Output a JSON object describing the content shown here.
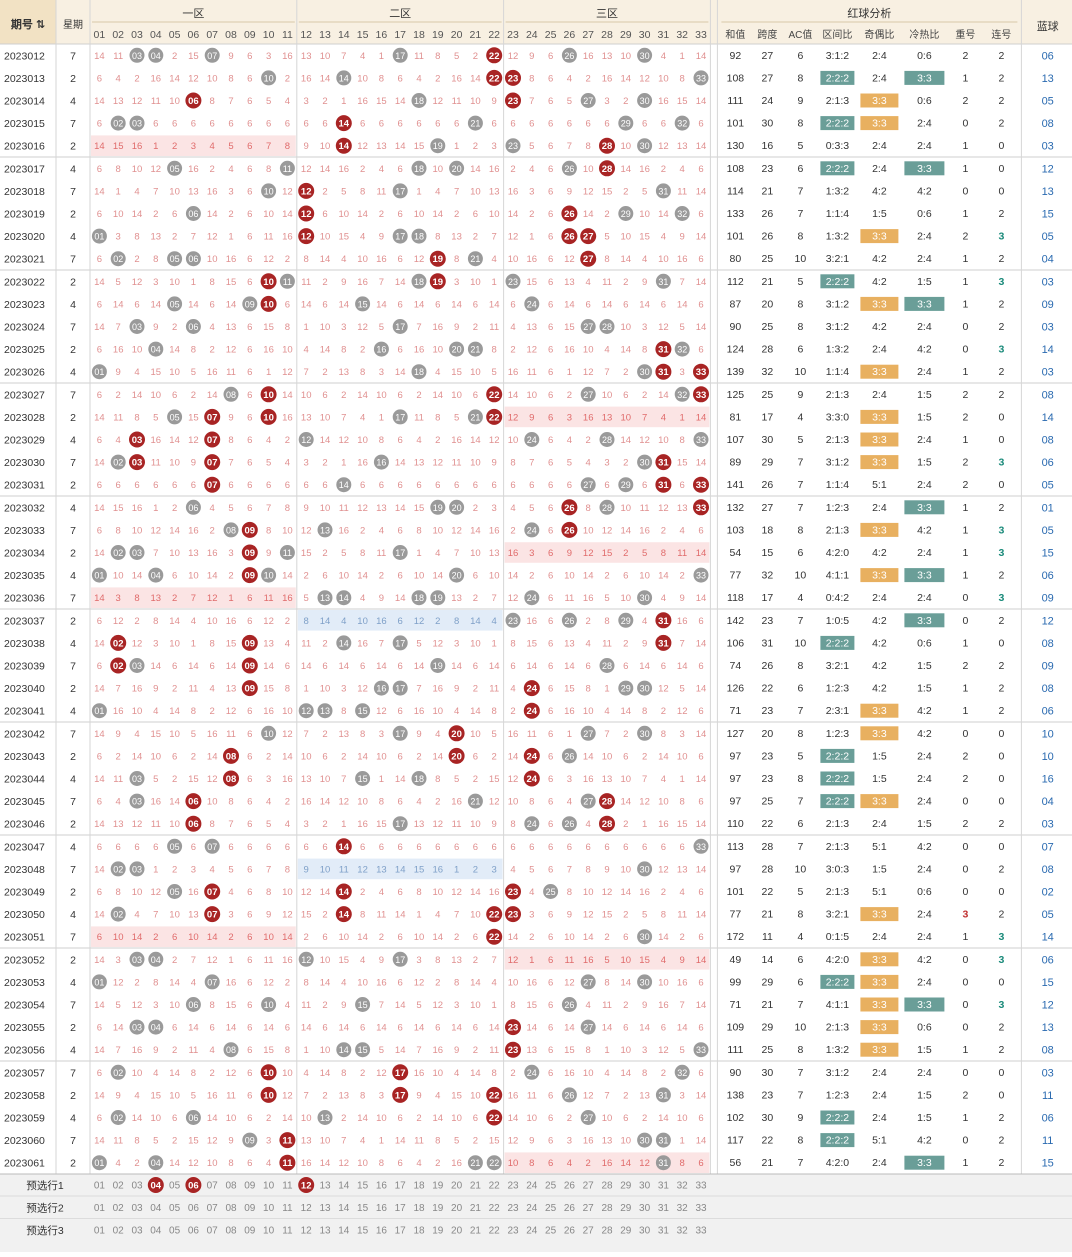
{
  "header": {
    "qihao_label": "期号",
    "week_label": "星期",
    "zone1_label": "一区",
    "zone2_label": "二区",
    "zone3_label": "三区",
    "analysis_label": "红球分析",
    "blue_label": "蓝球",
    "analysis_cols": [
      "和值",
      "跨度",
      "AC值",
      "区间比",
      "奇偶比",
      "冷热比",
      "重号",
      "连号"
    ],
    "numbers": [
      "01",
      "02",
      "03",
      "04",
      "05",
      "06",
      "07",
      "08",
      "09",
      "10",
      "11",
      "12",
      "13",
      "14",
      "15",
      "16",
      "17",
      "18",
      "19",
      "20",
      "21",
      "22",
      "23",
      "24",
      "25",
      "26",
      "27",
      "28",
      "29",
      "30",
      "31",
      "32",
      "33"
    ]
  },
  "colors": {
    "header_bg": "#f8f0e2",
    "red_ball": "#a82424",
    "gray_ball": "#9a9a9a",
    "miss_text": "#e09090",
    "teal": "#6a9e98",
    "orange": "#e8b060",
    "blue_text": "#2a6ab0",
    "pink_band": "#fbe4e4",
    "blue_band": "#e2ecf8"
  },
  "rows": [
    {
      "id": "2023012",
      "week": "7",
      "reds": [
        22
      ],
      "grays": [
        3,
        4,
        7,
        17,
        26,
        30
      ],
      "sum": "92",
      "span": "27",
      "ac": "6",
      "zone": "3:1:2",
      "oe": "2:4",
      "ch": "0:6",
      "rep": "2",
      "con": "2",
      "blue": "06",
      "oeH": 0,
      "chH": 0
    },
    {
      "id": "2023013",
      "week": "2",
      "reds": [
        22,
        23
      ],
      "grays": [
        10,
        14,
        33
      ],
      "sum": "108",
      "span": "27",
      "ac": "8",
      "zone": "2:2:2",
      "oe": "2:4",
      "ch": "3:3",
      "rep": "1",
      "con": "2",
      "blue": "13",
      "oeH": 0,
      "chH": 1,
      "zoneH": 1
    },
    {
      "id": "2023014",
      "week": "4",
      "reds": [
        6,
        23
      ],
      "grays": [
        18,
        27,
        30
      ],
      "sum": "111",
      "span": "24",
      "ac": "9",
      "zone": "2:1:3",
      "oe": "3:3",
      "ch": "0:6",
      "rep": "2",
      "con": "2",
      "blue": "05",
      "oeH": 1,
      "chH": 0
    },
    {
      "id": "2023015",
      "week": "7",
      "reds": [
        14
      ],
      "grays": [
        2,
        3,
        21,
        29,
        32
      ],
      "sum": "101",
      "span": "30",
      "ac": "8",
      "zone": "2:2:2",
      "oe": "3:3",
      "ch": "2:4",
      "rep": "0",
      "con": "2",
      "blue": "08",
      "oeH": 1,
      "zoneH": 1
    },
    {
      "id": "2023016",
      "week": "2",
      "reds": [
        14,
        28
      ],
      "grays": [
        19,
        23,
        30
      ],
      "sum": "130",
      "span": "16",
      "ac": "5",
      "zone": "0:3:3",
      "oe": "2:4",
      "ch": "2:4",
      "rep": "1",
      "con": "0",
      "blue": "03",
      "band1": "pink"
    },
    {
      "id": "2023017",
      "week": "4",
      "reds": [
        28
      ],
      "grays": [
        5,
        11,
        18,
        20,
        26
      ],
      "sum": "108",
      "span": "23",
      "ac": "6",
      "zone": "2:2:2",
      "oe": "2:4",
      "ch": "3:3",
      "rep": "1",
      "con": "0",
      "blue": "12",
      "zoneH": 1,
      "chH": 1
    },
    {
      "id": "2023018",
      "week": "7",
      "reds": [
        12
      ],
      "grays": [
        10,
        17,
        31
      ],
      "sum": "114",
      "span": "21",
      "ac": "7",
      "zone": "1:3:2",
      "oe": "4:2",
      "ch": "4:2",
      "rep": "0",
      "con": "0",
      "blue": "13"
    },
    {
      "id": "2023019",
      "week": "2",
      "reds": [
        12,
        26
      ],
      "grays": [
        6,
        29,
        32
      ],
      "sum": "133",
      "span": "26",
      "ac": "7",
      "zone": "1:1:4",
      "oe": "1:5",
      "ch": "0:6",
      "rep": "1",
      "con": "2",
      "blue": "15"
    },
    {
      "id": "2023020",
      "week": "4",
      "reds": [
        12,
        26,
        27
      ],
      "grays": [
        1,
        17,
        18
      ],
      "sum": "101",
      "span": "26",
      "ac": "8",
      "zone": "1:3:2",
      "oe": "3:3",
      "ch": "2:4",
      "rep": "2",
      "con": "3",
      "blue": "05",
      "oeH": 1,
      "conH": 1
    },
    {
      "id": "2023021",
      "week": "7",
      "reds": [
        19,
        27
      ],
      "grays": [
        2,
        5,
        6,
        21
      ],
      "sum": "80",
      "span": "25",
      "ac": "10",
      "zone": "3:2:1",
      "oe": "4:2",
      "ch": "2:4",
      "rep": "1",
      "con": "2",
      "blue": "04"
    },
    {
      "id": "2023022",
      "week": "2",
      "reds": [
        10,
        19
      ],
      "grays": [
        11,
        18,
        23,
        31
      ],
      "sum": "112",
      "span": "21",
      "ac": "5",
      "zone": "2:2:2",
      "oe": "4:2",
      "ch": "1:5",
      "rep": "1",
      "con": "3",
      "blue": "03",
      "zoneH": 1,
      "conH": 1
    },
    {
      "id": "2023023",
      "week": "4",
      "reds": [
        10
      ],
      "grays": [
        5,
        9,
        15,
        24
      ],
      "sum": "87",
      "span": "20",
      "ac": "8",
      "zone": "3:1:2",
      "oe": "3:3",
      "ch": "3:3",
      "rep": "1",
      "con": "2",
      "blue": "09",
      "oeH": 1,
      "chH": 1
    },
    {
      "id": "2023024",
      "week": "7",
      "reds": [],
      "grays": [
        3,
        6,
        17,
        27,
        28
      ],
      "sum": "90",
      "span": "25",
      "ac": "8",
      "zone": "3:1:2",
      "oe": "4:2",
      "ch": "2:4",
      "rep": "0",
      "con": "2",
      "blue": "03"
    },
    {
      "id": "2023025",
      "week": "2",
      "reds": [
        31
      ],
      "grays": [
        4,
        16,
        20,
        21,
        32
      ],
      "sum": "124",
      "span": "28",
      "ac": "6",
      "zone": "1:3:2",
      "oe": "2:4",
      "ch": "4:2",
      "rep": "0",
      "con": "3",
      "blue": "14",
      "conH": 1
    },
    {
      "id": "2023026",
      "week": "4",
      "reds": [
        31,
        33
      ],
      "grays": [
        1,
        18,
        30
      ],
      "sum": "139",
      "span": "32",
      "ac": "10",
      "zone": "1:1:4",
      "oe": "3:3",
      "ch": "2:4",
      "rep": "1",
      "con": "2",
      "blue": "03",
      "oeH": 1
    },
    {
      "id": "2023027",
      "week": "7",
      "reds": [
        10,
        22,
        33
      ],
      "grays": [
        8,
        27,
        32
      ],
      "sum": "125",
      "span": "25",
      "ac": "9",
      "zone": "2:1:3",
      "oe": "2:4",
      "ch": "1:5",
      "rep": "2",
      "con": "2",
      "blue": "08"
    },
    {
      "id": "2023028",
      "week": "2",
      "reds": [
        7,
        10,
        22
      ],
      "grays": [
        5,
        17,
        21
      ],
      "sum": "81",
      "span": "17",
      "ac": "4",
      "zone": "3:3:0",
      "oe": "3:3",
      "ch": "1:5",
      "rep": "2",
      "con": "0",
      "blue": "14",
      "oeH": 1,
      "band3": "pink"
    },
    {
      "id": "2023029",
      "week": "4",
      "reds": [
        3,
        7
      ],
      "grays": [
        12,
        24,
        28,
        33
      ],
      "sum": "107",
      "span": "30",
      "ac": "5",
      "zone": "2:1:3",
      "oe": "3:3",
      "ch": "2:4",
      "rep": "1",
      "con": "0",
      "blue": "08",
      "oeH": 1
    },
    {
      "id": "2023030",
      "week": "7",
      "reds": [
        3,
        7,
        31
      ],
      "grays": [
        2,
        16,
        30
      ],
      "sum": "89",
      "span": "29",
      "ac": "7",
      "zone": "3:1:2",
      "oe": "3:3",
      "ch": "1:5",
      "rep": "2",
      "con": "3",
      "blue": "06",
      "oeH": 1,
      "conH": 1
    },
    {
      "id": "2023031",
      "week": "2",
      "reds": [
        7,
        31,
        33
      ],
      "grays": [
        14,
        27,
        29
      ],
      "sum": "141",
      "span": "26",
      "ac": "7",
      "zone": "1:1:4",
      "oe": "5:1",
      "ch": "2:4",
      "rep": "2",
      "con": "0",
      "blue": "05"
    },
    {
      "id": "2023032",
      "week": "4",
      "reds": [
        26,
        33
      ],
      "grays": [
        6,
        19,
        20,
        28
      ],
      "sum": "132",
      "span": "27",
      "ac": "7",
      "zone": "1:2:3",
      "oe": "2:4",
      "ch": "3:3",
      "rep": "1",
      "con": "2",
      "blue": "01",
      "chH": 1
    },
    {
      "id": "2023033",
      "week": "7",
      "reds": [
        9,
        26
      ],
      "grays": [
        8,
        13,
        24
      ],
      "sum": "103",
      "span": "18",
      "ac": "8",
      "zone": "2:1:3",
      "oe": "3:3",
      "ch": "4:2",
      "rep": "1",
      "con": "3",
      "blue": "05",
      "oeH": 1,
      "conH": 1
    },
    {
      "id": "2023034",
      "week": "2",
      "reds": [
        9
      ],
      "grays": [
        2,
        3,
        11,
        17
      ],
      "sum": "54",
      "span": "15",
      "ac": "6",
      "zone": "4:2:0",
      "oe": "4:2",
      "ch": "2:4",
      "rep": "1",
      "con": "3",
      "blue": "15",
      "conH": 1,
      "band3": "pink"
    },
    {
      "id": "2023035",
      "week": "4",
      "reds": [
        9
      ],
      "grays": [
        1,
        4,
        10,
        20,
        33
      ],
      "sum": "77",
      "span": "32",
      "ac": "10",
      "zone": "4:1:1",
      "oe": "3:3",
      "ch": "3:3",
      "rep": "1",
      "con": "2",
      "blue": "06",
      "oeH": 1,
      "chH": 1
    },
    {
      "id": "2023036",
      "week": "7",
      "reds": [],
      "grays": [
        13,
        14,
        18,
        19,
        24,
        30
      ],
      "sum": "118",
      "span": "17",
      "ac": "4",
      "zone": "0:4:2",
      "oe": "2:4",
      "ch": "2:4",
      "rep": "0",
      "con": "3",
      "blue": "09",
      "conH": 1,
      "band1": "pink"
    },
    {
      "id": "2023037",
      "week": "2",
      "reds": [
        31
      ],
      "grays": [
        26,
        29,
        23
      ],
      "sum": "142",
      "span": "23",
      "ac": "7",
      "zone": "1:0:5",
      "oe": "4:2",
      "ch": "3:3",
      "rep": "0",
      "con": "2",
      "blue": "12",
      "chH": 1,
      "band2": "blue"
    },
    {
      "id": "2023038",
      "week": "4",
      "reds": [
        2,
        9,
        31
      ],
      "grays": [
        14,
        17
      ],
      "sum": "106",
      "span": "31",
      "ac": "10",
      "zone": "2:2:2",
      "oe": "4:2",
      "ch": "0:6",
      "rep": "1",
      "con": "0",
      "blue": "08",
      "zoneH": 1
    },
    {
      "id": "2023039",
      "week": "7",
      "reds": [
        2,
        9
      ],
      "grays": [
        3,
        19,
        28
      ],
      "sum": "74",
      "span": "26",
      "ac": "8",
      "zone": "3:2:1",
      "oe": "4:2",
      "ch": "1:5",
      "rep": "2",
      "con": "2",
      "blue": "09"
    },
    {
      "id": "2023040",
      "week": "2",
      "reds": [
        9,
        24
      ],
      "grays": [
        16,
        17,
        29,
        30
      ],
      "sum": "126",
      "span": "22",
      "ac": "6",
      "zone": "1:2:3",
      "oe": "4:2",
      "ch": "1:5",
      "rep": "1",
      "con": "2",
      "blue": "08"
    },
    {
      "id": "2023041",
      "week": "4",
      "reds": [
        24
      ],
      "grays": [
        1,
        12,
        13,
        15
      ],
      "sum": "71",
      "span": "23",
      "ac": "7",
      "zone": "2:3:1",
      "oe": "3:3",
      "ch": "4:2",
      "rep": "1",
      "con": "2",
      "blue": "06",
      "oeH": 1
    },
    {
      "id": "2023042",
      "week": "7",
      "reds": [
        20
      ],
      "grays": [
        10,
        17,
        27,
        30
      ],
      "sum": "127",
      "span": "20",
      "ac": "8",
      "zone": "1:2:3",
      "oe": "3:3",
      "ch": "4:2",
      "rep": "0",
      "con": "0",
      "blue": "10",
      "oeH": 1
    },
    {
      "id": "2023043",
      "week": "2",
      "reds": [
        8,
        20,
        24
      ],
      "grays": [
        26
      ],
      "sum": "97",
      "span": "23",
      "ac": "5",
      "zone": "2:2:2",
      "oe": "1:5",
      "ch": "2:4",
      "rep": "2",
      "con": "0",
      "blue": "10",
      "zoneH": 1
    },
    {
      "id": "2023044",
      "week": "4",
      "reds": [
        8,
        24
      ],
      "grays": [
        3,
        15,
        18
      ],
      "sum": "97",
      "span": "23",
      "ac": "8",
      "zone": "2:2:2",
      "oe": "1:5",
      "ch": "2:4",
      "rep": "2",
      "con": "0",
      "blue": "16",
      "zoneH": 1
    },
    {
      "id": "2023045",
      "week": "7",
      "reds": [
        6,
        28
      ],
      "grays": [
        3,
        21,
        27
      ],
      "sum": "97",
      "span": "25",
      "ac": "7",
      "zone": "2:2:2",
      "oe": "3:3",
      "ch": "2:4",
      "rep": "0",
      "con": "0",
      "blue": "04",
      "zoneH": 1,
      "oeH": 1
    },
    {
      "id": "2023046",
      "week": "2",
      "reds": [
        6,
        28
      ],
      "grays": [
        17,
        24,
        26
      ],
      "sum": "110",
      "span": "22",
      "ac": "6",
      "zone": "2:1:3",
      "oe": "2:4",
      "ch": "1:5",
      "rep": "2",
      "con": "2",
      "blue": "03"
    },
    {
      "id": "2023047",
      "week": "4",
      "reds": [
        14
      ],
      "grays": [
        5,
        7,
        33
      ],
      "sum": "113",
      "span": "28",
      "ac": "7",
      "zone": "2:1:3",
      "oe": "5:1",
      "ch": "4:2",
      "rep": "0",
      "con": "0",
      "blue": "07"
    },
    {
      "id": "2023048",
      "week": "7",
      "reds": [],
      "grays": [
        2,
        3,
        30
      ],
      "sum": "97",
      "span": "28",
      "ac": "10",
      "zone": "3:0:3",
      "oe": "1:5",
      "ch": "2:4",
      "rep": "0",
      "con": "2",
      "blue": "08",
      "band2": "blue"
    },
    {
      "id": "2023049",
      "week": "2",
      "reds": [
        7,
        14,
        23
      ],
      "grays": [
        5,
        25
      ],
      "sum": "101",
      "span": "22",
      "ac": "5",
      "zone": "2:1:3",
      "oe": "5:1",
      "ch": "0:6",
      "rep": "0",
      "con": "0",
      "blue": "02"
    },
    {
      "id": "2023050",
      "week": "4",
      "reds": [
        7,
        14,
        22,
        23
      ],
      "grays": [
        2
      ],
      "sum": "77",
      "span": "21",
      "ac": "8",
      "zone": "3:2:1",
      "oe": "3:3",
      "ch": "2:4",
      "rep": "3",
      "con": "2",
      "blue": "05",
      "oeH": 1,
      "repH": 1
    },
    {
      "id": "2023051",
      "week": "7",
      "reds": [
        22
      ],
      "grays": [
        30
      ],
      "sum": "172",
      "span": "11",
      "ac": "4",
      "zone": "0:1:5",
      "oe": "2:4",
      "ch": "2:4",
      "rep": "1",
      "con": "3",
      "blue": "14",
      "conH": 1,
      "band1": "pink"
    },
    {
      "id": "2023052",
      "week": "2",
      "reds": [],
      "grays": [
        3,
        4,
        12,
        17
      ],
      "sum": "49",
      "span": "14",
      "ac": "6",
      "zone": "4:2:0",
      "oe": "3:3",
      "ch": "4:2",
      "rep": "0",
      "con": "3",
      "blue": "06",
      "oeH": 1,
      "conH": 1,
      "band3": "pink"
    },
    {
      "id": "2023053",
      "week": "4",
      "reds": [],
      "grays": [
        1,
        7,
        27,
        30
      ],
      "sum": "99",
      "span": "29",
      "ac": "6",
      "zone": "2:2:2",
      "oe": "3:3",
      "ch": "2:4",
      "rep": "0",
      "con": "0",
      "blue": "15",
      "zoneH": 1,
      "oeH": 1
    },
    {
      "id": "2023054",
      "week": "7",
      "reds": [],
      "grays": [
        6,
        10,
        15,
        26
      ],
      "sum": "71",
      "span": "21",
      "ac": "7",
      "zone": "4:1:1",
      "oe": "3:3",
      "ch": "3:3",
      "rep": "0",
      "con": "3",
      "blue": "12",
      "oeH": 1,
      "chH": 1,
      "conH": 1
    },
    {
      "id": "2023055",
      "week": "2",
      "reds": [
        23
      ],
      "grays": [
        3,
        4,
        27
      ],
      "sum": "109",
      "span": "29",
      "ac": "10",
      "zone": "2:1:3",
      "oe": "3:3",
      "ch": "0:6",
      "rep": "0",
      "con": "2",
      "blue": "13",
      "oeH": 1
    },
    {
      "id": "2023056",
      "week": "4",
      "reds": [
        23
      ],
      "grays": [
        8,
        14,
        15,
        33
      ],
      "sum": "111",
      "span": "25",
      "ac": "8",
      "zone": "1:3:2",
      "oe": "3:3",
      "ch": "1:5",
      "rep": "1",
      "con": "2",
      "blue": "08",
      "oeH": 1
    },
    {
      "id": "2023057",
      "week": "7",
      "reds": [
        10,
        17
      ],
      "grays": [
        2,
        24,
        32
      ],
      "sum": "90",
      "span": "30",
      "ac": "7",
      "zone": "3:1:2",
      "oe": "2:4",
      "ch": "2:4",
      "rep": "0",
      "con": "0",
      "blue": "03"
    },
    {
      "id": "2023058",
      "week": "2",
      "reds": [
        10,
        17,
        22
      ],
      "grays": [
        26,
        31
      ],
      "sum": "138",
      "span": "23",
      "ac": "7",
      "zone": "1:2:3",
      "oe": "2:4",
      "ch": "1:5",
      "rep": "2",
      "con": "0",
      "blue": "11"
    },
    {
      "id": "2023059",
      "week": "4",
      "reds": [
        22
      ],
      "grays": [
        2,
        6,
        13,
        27
      ],
      "sum": "102",
      "span": "30",
      "ac": "9",
      "zone": "2:2:2",
      "oe": "2:4",
      "ch": "1:5",
      "rep": "1",
      "con": "2",
      "blue": "06",
      "zoneH": 1
    },
    {
      "id": "2023060",
      "week": "7",
      "reds": [
        11
      ],
      "grays": [
        9,
        30,
        31
      ],
      "sum": "117",
      "span": "22",
      "ac": "8",
      "zone": "2:2:2",
      "oe": "5:1",
      "ch": "4:2",
      "rep": "0",
      "con": "2",
      "blue": "11",
      "zoneH": 1
    },
    {
      "id": "2023061",
      "week": "2",
      "reds": [
        11
      ],
      "grays": [
        1,
        4,
        21,
        22,
        31
      ],
      "sum": "56",
      "span": "21",
      "ac": "7",
      "zone": "4:2:0",
      "oe": "2:4",
      "ch": "3:3",
      "rep": "1",
      "con": "2",
      "blue": "15",
      "chH": 1,
      "band3": "pink"
    }
  ],
  "predict": [
    {
      "label": "预选行1",
      "reds": [
        4,
        6,
        12
      ]
    },
    {
      "label": "预选行2",
      "reds": []
    },
    {
      "label": "预选行3",
      "reds": []
    }
  ]
}
